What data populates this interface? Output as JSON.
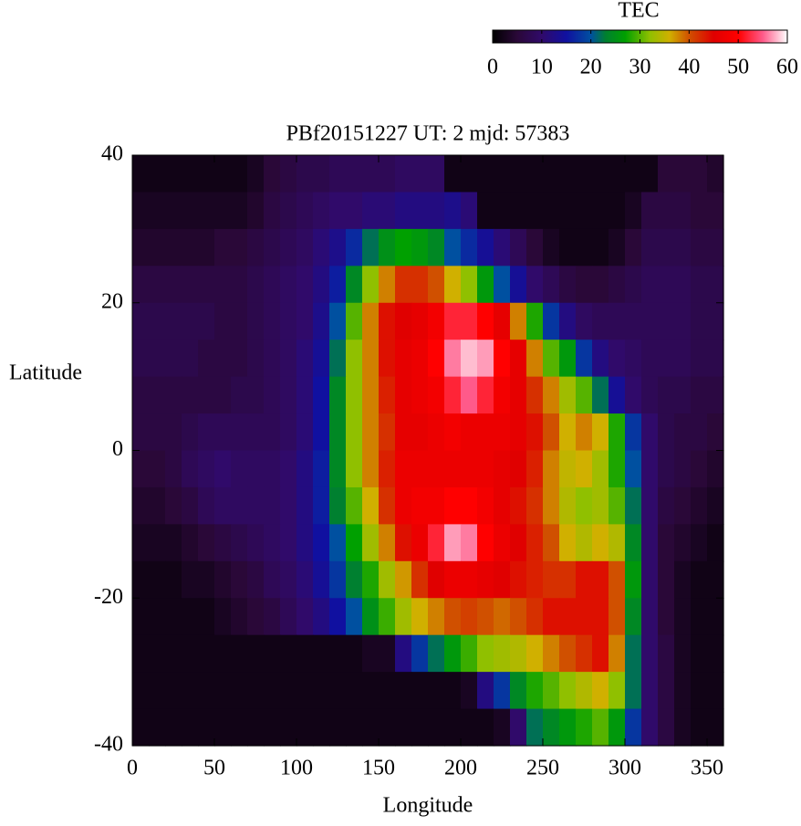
{
  "chart_data": {
    "type": "heatmap",
    "title": "PBf20151227  UT: 2  mjd: 57383",
    "xlabel": "Longitude",
    "ylabel": "Latitude",
    "colorbar_label": "TEC",
    "xlim": [
      0,
      360
    ],
    "xticks": [
      0,
      50,
      100,
      150,
      200,
      250,
      300,
      350
    ],
    "ylim": [
      -40,
      40
    ],
    "yticks": [
      -40,
      -20,
      0,
      20,
      40
    ],
    "zlim": [
      0,
      60
    ],
    "zticks": [
      0,
      10,
      20,
      30,
      40,
      50,
      60
    ],
    "colorscale": [
      [
        0,
        "#000000"
      ],
      [
        5,
        "#2a0838"
      ],
      [
        10,
        "#300a6a"
      ],
      [
        15,
        "#1010a0"
      ],
      [
        20,
        "#0050a0"
      ],
      [
        23,
        "#008030"
      ],
      [
        27,
        "#00a000"
      ],
      [
        32,
        "#90c000"
      ],
      [
        36,
        "#d0b000"
      ],
      [
        40,
        "#d05000"
      ],
      [
        45,
        "#e00000"
      ],
      [
        50,
        "#ff0000"
      ],
      [
        55,
        "#ff5a8a"
      ],
      [
        60,
        "#ffffff"
      ]
    ],
    "x": [
      5,
      15,
      25,
      35,
      45,
      55,
      65,
      75,
      85,
      95,
      105,
      115,
      125,
      135,
      145,
      155,
      165,
      175,
      185,
      195,
      205,
      215,
      225,
      235,
      245,
      255,
      265,
      275,
      285,
      295,
      305,
      315,
      325,
      335,
      345,
      355
    ],
    "y": [
      37.5,
      32.5,
      27.5,
      22.5,
      17.5,
      12.5,
      7.5,
      2.5,
      -2.5,
      -7.5,
      -12.5,
      -17.5,
      -22.5,
      -27.5,
      -32.5,
      -37.5
    ],
    "z": [
      [
        2,
        2,
        2,
        2,
        2,
        2,
        2,
        3,
        5,
        6,
        7,
        7,
        8,
        8,
        8,
        8,
        9,
        9,
        9,
        2,
        2,
        2,
        2,
        2,
        2,
        2,
        2,
        2,
        2,
        2,
        2,
        2,
        5,
        5,
        5,
        4
      ],
      [
        3,
        3,
        3,
        3,
        3,
        3,
        3,
        4,
        6,
        7,
        8,
        9,
        10,
        10,
        11,
        11,
        12,
        12,
        12,
        13,
        11,
        2,
        2,
        2,
        2,
        2,
        2,
        2,
        2,
        2,
        3,
        6,
        6,
        6,
        5,
        5
      ],
      [
        4,
        4,
        4,
        4,
        4,
        5,
        5,
        6,
        7,
        8,
        9,
        11,
        13,
        17,
        22,
        25,
        27,
        26,
        24,
        20,
        17,
        14,
        11,
        8,
        5,
        3,
        2,
        2,
        2,
        3,
        5,
        7,
        7,
        7,
        6,
        6
      ],
      [
        6,
        6,
        6,
        6,
        6,
        6,
        6,
        7,
        8,
        9,
        10,
        12,
        16,
        24,
        32,
        38,
        42,
        42,
        40,
        36,
        32,
        26,
        20,
        14,
        10,
        8,
        6,
        5,
        5,
        6,
        7,
        8,
        8,
        8,
        7,
        7
      ],
      [
        7,
        7,
        7,
        7,
        7,
        6,
        6,
        7,
        8,
        9,
        10,
        13,
        20,
        30,
        38,
        44,
        45,
        46,
        48,
        52,
        52,
        50,
        46,
        38,
        28,
        18,
        12,
        9,
        8,
        8,
        8,
        8,
        8,
        8,
        7,
        7
      ],
      [
        7,
        7,
        7,
        7,
        6,
        6,
        6,
        7,
        8,
        9,
        11,
        14,
        22,
        32,
        38,
        44,
        46,
        47,
        50,
        56,
        58,
        57,
        50,
        46,
        38,
        30,
        26,
        18,
        12,
        10,
        9,
        8,
        8,
        8,
        7,
        7
      ],
      [
        6,
        6,
        6,
        6,
        6,
        6,
        7,
        7,
        8,
        9,
        11,
        15,
        24,
        32,
        38,
        43,
        46,
        47,
        48,
        52,
        55,
        52,
        48,
        46,
        42,
        38,
        33,
        30,
        22,
        14,
        10,
        8,
        7,
        7,
        6,
        6
      ],
      [
        6,
        6,
        6,
        7,
        8,
        8,
        8,
        8,
        8,
        9,
        11,
        15,
        24,
        32,
        38,
        42,
        46,
        46,
        47,
        48,
        47,
        47,
        47,
        46,
        44,
        40,
        36,
        38,
        36,
        28,
        18,
        10,
        7,
        6,
        6,
        5
      ],
      [
        5,
        5,
        6,
        8,
        9,
        10,
        9,
        9,
        9,
        10,
        12,
        16,
        24,
        32,
        38,
        43,
        47,
        47,
        47,
        47,
        47,
        47,
        46,
        45,
        43,
        38,
        35,
        36,
        33,
        28,
        20,
        10,
        7,
        6,
        5,
        4
      ],
      [
        4,
        4,
        5,
        6,
        8,
        9,
        9,
        9,
        9,
        10,
        12,
        16,
        23,
        30,
        36,
        42,
        47,
        48,
        48,
        50,
        50,
        48,
        46,
        44,
        42,
        38,
        34,
        32,
        33,
        30,
        22,
        10,
        6,
        5,
        4,
        3
      ],
      [
        3,
        3,
        3,
        4,
        5,
        6,
        7,
        8,
        9,
        10,
        12,
        15,
        20,
        27,
        33,
        38,
        44,
        47,
        52,
        57,
        56,
        50,
        47,
        45,
        43,
        40,
        36,
        34,
        36,
        34,
        24,
        10,
        5,
        4,
        3,
        2
      ],
      [
        2,
        2,
        2,
        3,
        3,
        4,
        5,
        6,
        8,
        9,
        11,
        14,
        18,
        23,
        28,
        33,
        37,
        42,
        45,
        47,
        47,
        46,
        45,
        44,
        43,
        42,
        42,
        44,
        44,
        40,
        26,
        10,
        5,
        3,
        2,
        2
      ],
      [
        2,
        2,
        2,
        2,
        2,
        3,
        4,
        5,
        6,
        8,
        10,
        12,
        15,
        20,
        25,
        29,
        33,
        36,
        38,
        40,
        41,
        40,
        39,
        40,
        42,
        44,
        44,
        44,
        44,
        40,
        24,
        10,
        5,
        3,
        2,
        2
      ],
      [
        2,
        2,
        2,
        2,
        2,
        2,
        2,
        2,
        2,
        2,
        2,
        2,
        2,
        2,
        3,
        3,
        12,
        18,
        22,
        26,
        29,
        32,
        33,
        34,
        36,
        38,
        40,
        42,
        44,
        38,
        22,
        10,
        6,
        3,
        2,
        2
      ],
      [
        2,
        2,
        2,
        2,
        2,
        2,
        2,
        2,
        2,
        2,
        2,
        2,
        2,
        2,
        2,
        2,
        2,
        2,
        2,
        2,
        3,
        12,
        18,
        24,
        28,
        30,
        32,
        34,
        36,
        32,
        22,
        10,
        6,
        3,
        2,
        2
      ],
      [
        2,
        2,
        2,
        2,
        2,
        2,
        2,
        2,
        2,
        2,
        2,
        2,
        2,
        2,
        2,
        2,
        2,
        2,
        2,
        2,
        2,
        2,
        3,
        10,
        22,
        24,
        26,
        28,
        30,
        26,
        18,
        10,
        6,
        3,
        2,
        2
      ]
    ]
  }
}
